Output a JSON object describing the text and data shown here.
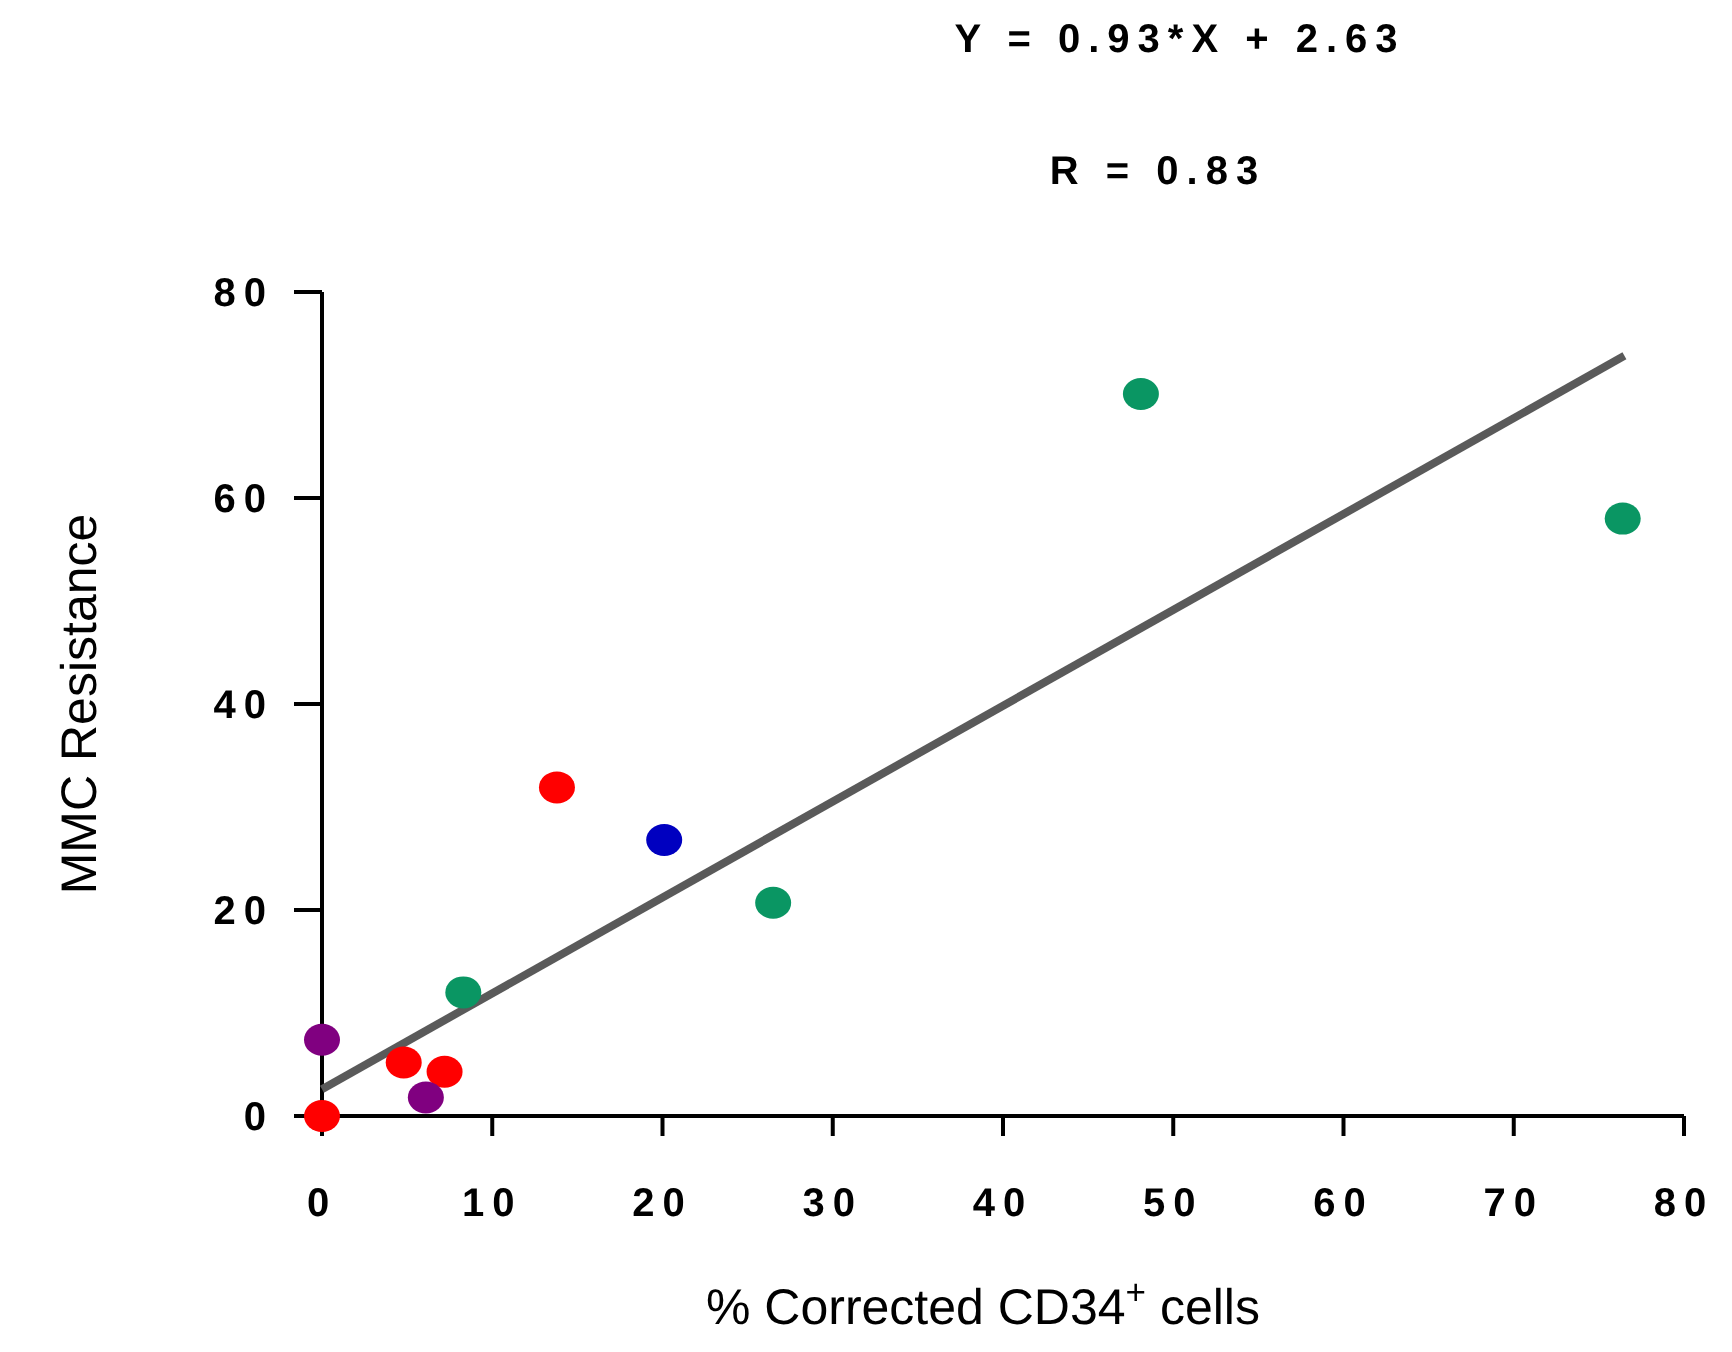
{
  "chart_data": {
    "type": "scatter",
    "title": "Y = 0.93*X + 2.63",
    "subtitle": "R = 0.83",
    "xlabel": "% Corrected CD34$^{+}$ cells",
    "ylabel": "MMC Resistance",
    "xlim": [
      0,
      80
    ],
    "xticks": [
      0,
      10,
      20,
      30,
      40,
      50,
      60,
      70,
      80
    ],
    "ylim": [
      0,
      80
    ],
    "yticks": [
      0,
      20,
      40,
      60,
      80
    ],
    "grid": false,
    "series": [
      {
        "marker": "circle",
        "x": [
          48.1,
          76.4,
          26.5,
          8.3,
          20.1,
          13.8,
          4.8,
          7.2,
          0,
          0,
          6.1
        ],
        "values": [
          70.1,
          58.0,
          20.7,
          12.0,
          26.8,
          31.9,
          5.2,
          4.3,
          0,
          7.4,
          1.8
        ],
        "colors": [
          "#0a9663",
          "#0a9663",
          "#0a9663",
          "#0a9663",
          "#0000c0",
          "#ff0000",
          "#ff0000",
          "#ff0000",
          "#ff0000",
          "#800080",
          "#800080"
        ]
      },
      {
        "type": "line",
        "x": [
          0,
          76.5
        ],
        "values": [
          2.6,
          73.8
        ],
        "color": "#5a5a5a",
        "line_style": "solid",
        "marker": "none"
      }
    ]
  }
}
